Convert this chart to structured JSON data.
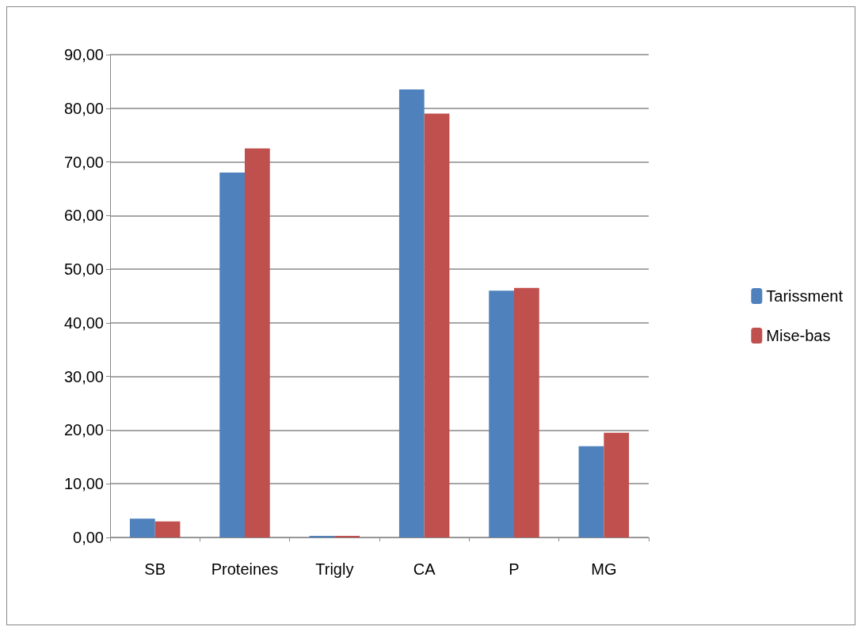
{
  "chart_data": {
    "type": "bar",
    "categories": [
      "SB",
      "Proteines",
      "Trigly",
      "CA",
      "P",
      "MG"
    ],
    "series": [
      {
        "name": "Tarissment",
        "color": "#4f81bd",
        "values": [
          3.5,
          68,
          0.3,
          83.5,
          46,
          17
        ]
      },
      {
        "name": "Mise-bas",
        "color": "#c0504d",
        "values": [
          3,
          72.5,
          0.3,
          79,
          46.5,
          19.5
        ]
      }
    ],
    "ylim": [
      0,
      90
    ],
    "yticks": [
      {
        "value": 0,
        "label": "0,00"
      },
      {
        "value": 10,
        "label": "10,00"
      },
      {
        "value": 20,
        "label": "20,00"
      },
      {
        "value": 30,
        "label": "30,00"
      },
      {
        "value": 40,
        "label": "40,00"
      },
      {
        "value": 50,
        "label": "50,00"
      },
      {
        "value": 60,
        "label": "60,00"
      },
      {
        "value": 70,
        "label": "70,00"
      },
      {
        "value": 80,
        "label": "80,00"
      },
      {
        "value": 90,
        "label": "90,00"
      }
    ],
    "grid": true,
    "legend": "right"
  }
}
